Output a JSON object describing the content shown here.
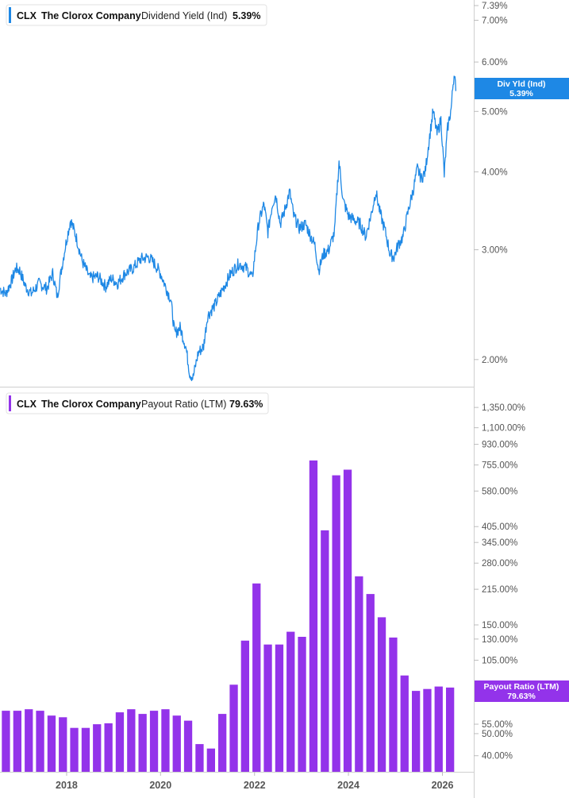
{
  "theme": {
    "line_color": "#1e88e5",
    "bar_color": "#9333ea",
    "axis_text_color": "#555555",
    "divider_color": "#cccccc"
  },
  "top_panel": {
    "ticker": "CLX",
    "company": "The Clorox Company",
    "metric": "Dividend Yield (Ind)",
    "value": "5.39%",
    "badge_line1": "Div Yld (Ind)",
    "badge_line2": "5.39%"
  },
  "bottom_panel": {
    "ticker": "CLX",
    "company": "The Clorox Company",
    "metric": "Payout Ratio (LTM)",
    "value": "79.63%",
    "badge_line1": "Payout Ratio (LTM)",
    "badge_line2": "79.63%"
  },
  "chart_data": [
    {
      "type": "line",
      "title": "CLX The Clorox Company Dividend Yield (Ind) 5.39%",
      "y_scale": "log",
      "ylim": [
        1.82,
        7.5
      ],
      "y_ticks": [
        {
          "value": 7.39,
          "label": "7.39%"
        },
        {
          "value": 7.0,
          "label": "7.00%"
        },
        {
          "value": 6.0,
          "label": "6.00%"
        },
        {
          "value": 5.0,
          "label": "5.00%"
        },
        {
          "value": 4.0,
          "label": "4.00%"
        },
        {
          "value": 3.0,
          "label": "3.00%"
        },
        {
          "value": 2.0,
          "label": "2.00%"
        }
      ],
      "xlim": [
        "2016-08-01",
        "2026-06-01"
      ],
      "series": [
        {
          "values_pct": [
            {
              "x": "2016-08-01",
              "y": 2.6
            },
            {
              "x": "2016-09-15",
              "y": 2.55
            },
            {
              "x": "2016-11-01",
              "y": 2.68
            },
            {
              "x": "2016-12-01",
              "y": 2.8
            },
            {
              "x": "2017-01-01",
              "y": 2.78
            },
            {
              "x": "2017-02-15",
              "y": 2.62
            },
            {
              "x": "2017-04-01",
              "y": 2.55
            },
            {
              "x": "2017-06-01",
              "y": 2.65
            },
            {
              "x": "2017-08-01",
              "y": 2.6
            },
            {
              "x": "2017-09-15",
              "y": 2.75
            },
            {
              "x": "2017-10-20",
              "y": 2.52
            },
            {
              "x": "2017-12-15",
              "y": 2.98
            },
            {
              "x": "2018-02-01",
              "y": 3.35
            },
            {
              "x": "2018-03-15",
              "y": 3.15
            },
            {
              "x": "2018-05-01",
              "y": 2.88
            },
            {
              "x": "2018-07-01",
              "y": 2.7
            },
            {
              "x": "2018-09-01",
              "y": 2.72
            },
            {
              "x": "2018-11-01",
              "y": 2.62
            },
            {
              "x": "2018-12-15",
              "y": 2.7
            },
            {
              "x": "2019-02-01",
              "y": 2.65
            },
            {
              "x": "2019-04-01",
              "y": 2.75
            },
            {
              "x": "2019-06-01",
              "y": 2.8
            },
            {
              "x": "2019-08-01",
              "y": 2.9
            },
            {
              "x": "2019-10-01",
              "y": 2.92
            },
            {
              "x": "2019-11-15",
              "y": 2.85
            },
            {
              "x": "2020-01-01",
              "y": 2.75
            },
            {
              "x": "2020-02-15",
              "y": 2.6
            },
            {
              "x": "2020-03-20",
              "y": 2.5
            },
            {
              "x": "2020-04-20",
              "y": 2.2
            },
            {
              "x": "2020-06-01",
              "y": 2.25
            },
            {
              "x": "2020-07-15",
              "y": 2.1
            },
            {
              "x": "2020-08-15",
              "y": 1.9
            },
            {
              "x": "2020-09-10",
              "y": 1.87
            },
            {
              "x": "2020-10-20",
              "y": 2.05
            },
            {
              "x": "2020-12-01",
              "y": 2.1
            },
            {
              "x": "2021-01-01",
              "y": 2.35
            },
            {
              "x": "2021-03-01",
              "y": 2.45
            },
            {
              "x": "2021-05-01",
              "y": 2.6
            },
            {
              "x": "2021-07-01",
              "y": 2.75
            },
            {
              "x": "2021-09-01",
              "y": 2.85
            },
            {
              "x": "2021-11-01",
              "y": 2.8
            },
            {
              "x": "2021-12-15",
              "y": 2.7
            },
            {
              "x": "2022-02-01",
              "y": 3.3
            },
            {
              "x": "2022-03-15",
              "y": 3.55
            },
            {
              "x": "2022-04-15",
              "y": 3.2
            },
            {
              "x": "2022-05-20",
              "y": 3.55
            },
            {
              "x": "2022-06-15",
              "y": 3.68
            },
            {
              "x": "2022-07-20",
              "y": 3.3
            },
            {
              "x": "2022-08-20",
              "y": 3.45
            },
            {
              "x": "2022-10-01",
              "y": 3.72
            },
            {
              "x": "2022-11-01",
              "y": 3.4
            },
            {
              "x": "2022-12-15",
              "y": 3.25
            },
            {
              "x": "2023-02-01",
              "y": 3.3
            },
            {
              "x": "2023-03-15",
              "y": 3.15
            },
            {
              "x": "2023-04-15",
              "y": 3.05
            },
            {
              "x": "2023-05-15",
              "y": 2.78
            },
            {
              "x": "2023-06-20",
              "y": 2.95
            },
            {
              "x": "2023-08-01",
              "y": 3.0
            },
            {
              "x": "2023-09-15",
              "y": 3.2
            },
            {
              "x": "2023-10-20",
              "y": 4.15
            },
            {
              "x": "2023-11-20",
              "y": 3.6
            },
            {
              "x": "2024-01-01",
              "y": 3.4
            },
            {
              "x": "2024-02-15",
              "y": 3.35
            },
            {
              "x": "2024-04-01",
              "y": 3.3
            },
            {
              "x": "2024-05-15",
              "y": 3.15
            },
            {
              "x": "2024-07-01",
              "y": 3.45
            },
            {
              "x": "2024-08-01",
              "y": 3.72
            },
            {
              "x": "2024-09-01",
              "y": 3.45
            },
            {
              "x": "2024-10-15",
              "y": 3.2
            },
            {
              "x": "2024-11-20",
              "y": 2.95
            },
            {
              "x": "2024-12-20",
              "y": 2.92
            },
            {
              "x": "2025-01-20",
              "y": 3.05
            },
            {
              "x": "2025-03-01",
              "y": 3.15
            },
            {
              "x": "2025-04-15",
              "y": 3.5
            },
            {
              "x": "2025-05-20",
              "y": 3.75
            },
            {
              "x": "2025-06-20",
              "y": 4.05
            },
            {
              "x": "2025-07-20",
              "y": 3.9
            },
            {
              "x": "2025-08-20",
              "y": 4.0
            },
            {
              "x": "2025-09-20",
              "y": 4.5
            },
            {
              "x": "2025-10-20",
              "y": 5.0
            },
            {
              "x": "2025-11-20",
              "y": 4.6
            },
            {
              "x": "2025-12-20",
              "y": 4.85
            },
            {
              "x": "2026-01-15",
              "y": 3.95
            },
            {
              "x": "2026-02-10",
              "y": 4.7
            },
            {
              "x": "2026-03-10",
              "y": 5.05
            },
            {
              "x": "2026-03-25",
              "y": 5.55
            },
            {
              "x": "2026-04-05",
              "y": 5.8
            },
            {
              "x": "2026-04-15",
              "y": 5.39
            }
          ]
        }
      ]
    },
    {
      "type": "bar",
      "title": "CLX The Clorox Company Payout Ratio (LTM) 79.63%",
      "y_scale": "log",
      "ylim": [
        34,
        1500
      ],
      "y_ticks": [
        {
          "value": 1350,
          "label": "1,350.00%"
        },
        {
          "value": 1100,
          "label": "1,100.00%"
        },
        {
          "value": 930,
          "label": "930.00%"
        },
        {
          "value": 755,
          "label": "755.00%"
        },
        {
          "value": 580,
          "label": "580.00%"
        },
        {
          "value": 405,
          "label": "405.00%"
        },
        {
          "value": 345,
          "label": "345.00%"
        },
        {
          "value": 280,
          "label": "280.00%"
        },
        {
          "value": 215,
          "label": "215.00%"
        },
        {
          "value": 150,
          "label": "150.00%"
        },
        {
          "value": 130,
          "label": "130.00%"
        },
        {
          "value": 105,
          "label": "105.00%"
        },
        {
          "value": 55,
          "label": "55.00%"
        },
        {
          "value": 50,
          "label": "50.00%"
        },
        {
          "value": 40,
          "label": "40.00%"
        }
      ],
      "xlim": [
        "2016-08-01",
        "2026-06-01"
      ],
      "x_tick_labels": [
        {
          "x": "2018-01-01",
          "label": "2018"
        },
        {
          "x": "2020-01-01",
          "label": "2020"
        },
        {
          "x": "2022-01-01",
          "label": "2022"
        },
        {
          "x": "2024-01-01",
          "label": "2024"
        },
        {
          "x": "2026-01-01",
          "label": "2026"
        }
      ],
      "series": [
        {
          "values_pct": [
            {
              "x": "2016-09-30",
              "y": 63
            },
            {
              "x": "2016-12-31",
              "y": 63
            },
            {
              "x": "2017-03-31",
              "y": 64
            },
            {
              "x": "2017-06-30",
              "y": 63
            },
            {
              "x": "2017-09-30",
              "y": 60
            },
            {
              "x": "2017-12-31",
              "y": 59
            },
            {
              "x": "2018-03-31",
              "y": 53
            },
            {
              "x": "2018-06-30",
              "y": 53
            },
            {
              "x": "2018-09-30",
              "y": 55
            },
            {
              "x": "2018-12-31",
              "y": 55.5
            },
            {
              "x": "2019-03-31",
              "y": 62
            },
            {
              "x": "2019-06-30",
              "y": 64
            },
            {
              "x": "2019-09-30",
              "y": 61
            },
            {
              "x": "2019-12-31",
              "y": 63
            },
            {
              "x": "2020-03-31",
              "y": 64
            },
            {
              "x": "2020-06-30",
              "y": 60
            },
            {
              "x": "2020-09-30",
              "y": 57
            },
            {
              "x": "2020-12-31",
              "y": 45
            },
            {
              "x": "2021-03-31",
              "y": 43
            },
            {
              "x": "2021-06-30",
              "y": 61
            },
            {
              "x": "2021-09-30",
              "y": 82
            },
            {
              "x": "2021-12-31",
              "y": 128
            },
            {
              "x": "2022-03-31",
              "y": 228
            },
            {
              "x": "2022-06-30",
              "y": 123
            },
            {
              "x": "2022-09-30",
              "y": 123
            },
            {
              "x": "2022-12-31",
              "y": 140
            },
            {
              "x": "2023-03-31",
              "y": 133
            },
            {
              "x": "2023-06-30",
              "y": 790
            },
            {
              "x": "2023-09-30",
              "y": 390
            },
            {
              "x": "2023-12-31",
              "y": 680
            },
            {
              "x": "2024-03-31",
              "y": 720
            },
            {
              "x": "2024-06-30",
              "y": 245
            },
            {
              "x": "2024-09-30",
              "y": 205
            },
            {
              "x": "2024-12-31",
              "y": 162
            },
            {
              "x": "2025-03-31",
              "y": 132
            },
            {
              "x": "2025-06-30",
              "y": 90
            },
            {
              "x": "2025-09-30",
              "y": 77
            },
            {
              "x": "2025-12-31",
              "y": 78.5
            },
            {
              "x": "2026-03-31",
              "y": 80.5
            },
            {
              "x": "2026-06-30",
              "y": 79.63
            }
          ]
        }
      ]
    }
  ]
}
